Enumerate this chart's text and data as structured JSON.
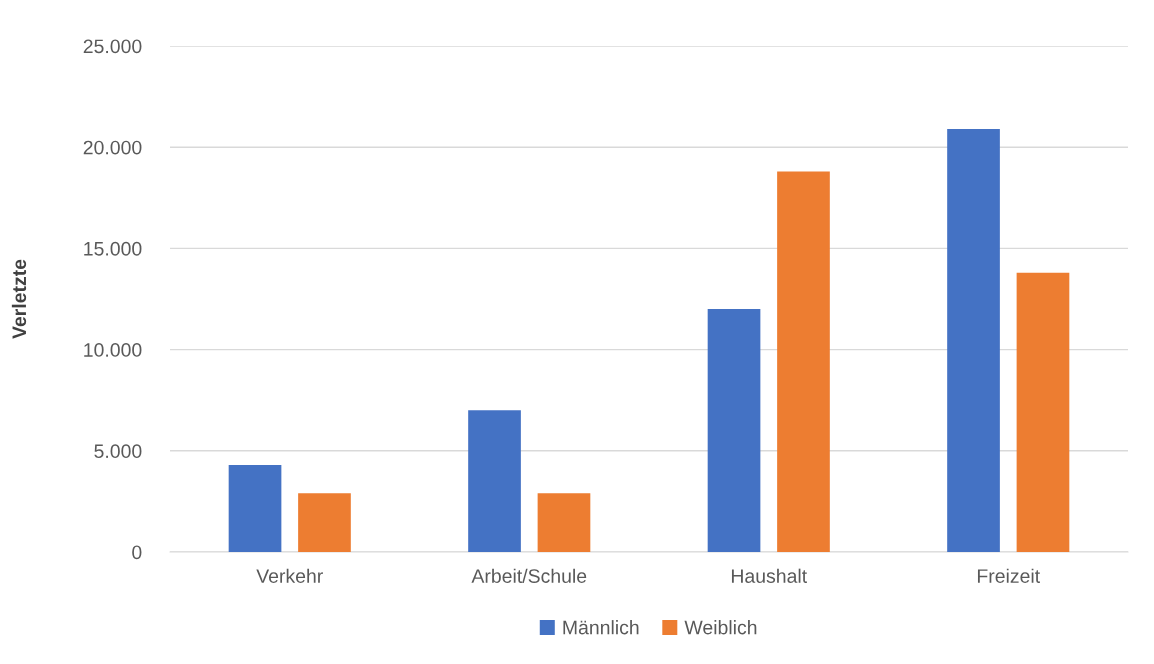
{
  "chart_data": {
    "type": "bar",
    "ylabel": "Verletzte",
    "categories": [
      "Verkehr",
      "Arbeit/Schule",
      "Haushalt",
      "Freizeit"
    ],
    "series": [
      {
        "name": "Männlich",
        "color": "#4472c4",
        "values": [
          4300,
          7000,
          12000,
          20900
        ]
      },
      {
        "name": "Weiblich",
        "color": "#ed7d31",
        "values": [
          2900,
          2900,
          18800,
          13800
        ]
      }
    ],
    "ylim": [
      0,
      25000
    ],
    "yticks": [
      {
        "value": 0,
        "label": "0"
      },
      {
        "value": 5000,
        "label": "5.000"
      },
      {
        "value": 10000,
        "label": "10.000"
      },
      {
        "value": 15000,
        "label": "15.000"
      },
      {
        "value": 20000,
        "label": "20.000"
      },
      {
        "value": 25000,
        "label": "25.000"
      }
    ],
    "grid": "y",
    "legend": "bottom"
  }
}
